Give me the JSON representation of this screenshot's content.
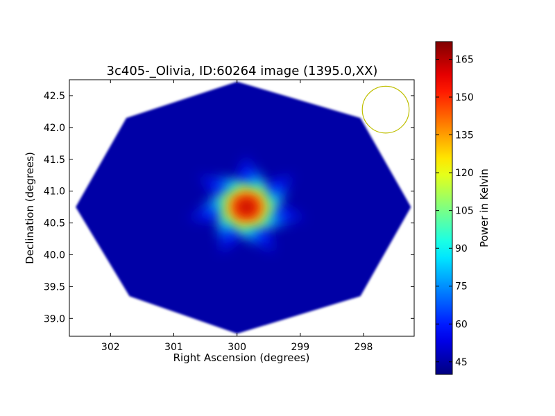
{
  "chart_data": {
    "type": "heatmap",
    "title": "3c405-_Olivia, ID:60264 image (1395.0,XX)",
    "xlabel": "Right Ascension (degrees)",
    "ylabel": "Declination (degrees)",
    "xlim": [
      302.65,
      297.2
    ],
    "ylim": [
      38.72,
      42.75
    ],
    "x_ticks": [
      302,
      301,
      300,
      299,
      298
    ],
    "y_ticks": [
      39.0,
      39.5,
      40.0,
      40.5,
      41.0,
      41.5,
      42.0,
      42.5
    ],
    "x_tick_labels": [
      "302",
      "301",
      "300",
      "299",
      "298"
    ],
    "y_tick_labels": [
      "39.0",
      "39.5",
      "40.0",
      "40.5",
      "41.0",
      "41.5",
      "42.0",
      "42.5"
    ],
    "colorbar": {
      "label": "Power in Kelvin",
      "range": [
        40,
        172
      ],
      "ticks": [
        45,
        60,
        75,
        90,
        105,
        120,
        135,
        150,
        165
      ],
      "tick_labels": [
        "45",
        "60",
        "75",
        "90",
        "105",
        "120",
        "135",
        "150",
        "165"
      ],
      "colormap": "jet"
    },
    "field_of_view": {
      "shape": "octagon",
      "vertices": [
        [
          300.0,
          42.72
        ],
        [
          301.75,
          42.15
        ],
        [
          302.55,
          40.75
        ],
        [
          301.7,
          39.35
        ],
        [
          300.0,
          38.76
        ],
        [
          298.05,
          39.35
        ],
        [
          297.25,
          40.75
        ],
        [
          298.05,
          42.15
        ]
      ],
      "background_value": 45
    },
    "source": {
      "ra": 299.85,
      "dec": 40.75,
      "peak_value": 170,
      "spokes": 7
    },
    "beam_circle": {
      "ra": 297.65,
      "dec": 42.28,
      "radius_deg": 0.37,
      "color": "#bfbf00"
    }
  }
}
